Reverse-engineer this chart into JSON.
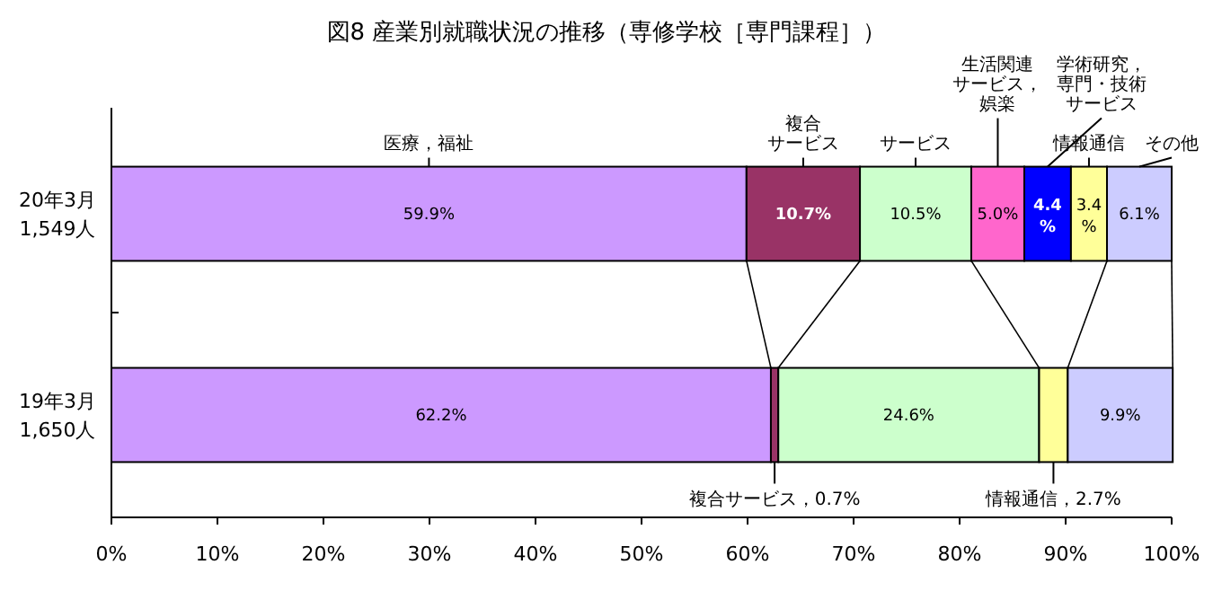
{
  "chart_data": {
    "type": "bar",
    "orientation": "horizontal",
    "stacked": true,
    "title": "図8 産業別就職状況の推移（専修学校［専門課程］）",
    "categories": [
      "20年3月 1,549人",
      "19年3月 1,650人"
    ],
    "xlim": [
      0,
      100
    ],
    "xticks": [
      {
        "value": 0,
        "label": "0%"
      },
      {
        "value": 10,
        "label": "10%"
      },
      {
        "value": 20,
        "label": "20%"
      },
      {
        "value": 30,
        "label": "30%"
      },
      {
        "value": 40,
        "label": "40%"
      },
      {
        "value": 50,
        "label": "50%"
      },
      {
        "value": 60,
        "label": "60%"
      },
      {
        "value": 70,
        "label": "70%"
      },
      {
        "value": 80,
        "label": "80%"
      },
      {
        "value": 90,
        "label": "90%"
      },
      {
        "value": 100,
        "label": "100%"
      }
    ],
    "series": [
      {
        "name": "医療，福祉",
        "color": "#cc99ff",
        "values": [
          59.9,
          62.2
        ],
        "value_labels": [
          "59.9%",
          "62.2%"
        ]
      },
      {
        "name": "複合サービス",
        "color": "#993366",
        "values": [
          10.7,
          0.7
        ],
        "value_labels": [
          "10.7%",
          "複合サービス，0.7%"
        ]
      },
      {
        "name": "サービス",
        "color": "#ccffcc",
        "values": [
          10.5,
          24.6
        ],
        "value_labels": [
          "10.5%",
          "24.6%"
        ]
      },
      {
        "name": "生活関連サービス，娯楽",
        "color": "#ff66cc",
        "values": [
          5.0,
          null
        ],
        "value_labels": [
          "5.0%",
          null
        ]
      },
      {
        "name": "学術研究，専門・技術サービス",
        "color": "#0000ff",
        "values": [
          4.4,
          null
        ],
        "value_labels": [
          "4.4%",
          null
        ]
      },
      {
        "name": "情報通信",
        "color": "#ffff99",
        "values": [
          3.4,
          2.7
        ],
        "value_labels": [
          "3.4%",
          "情報通信，2.7%"
        ]
      },
      {
        "name": "その他",
        "color": "#ccccff",
        "values": [
          6.1,
          9.9
        ],
        "value_labels": [
          "6.1%",
          "9.9%"
        ]
      }
    ]
  }
}
